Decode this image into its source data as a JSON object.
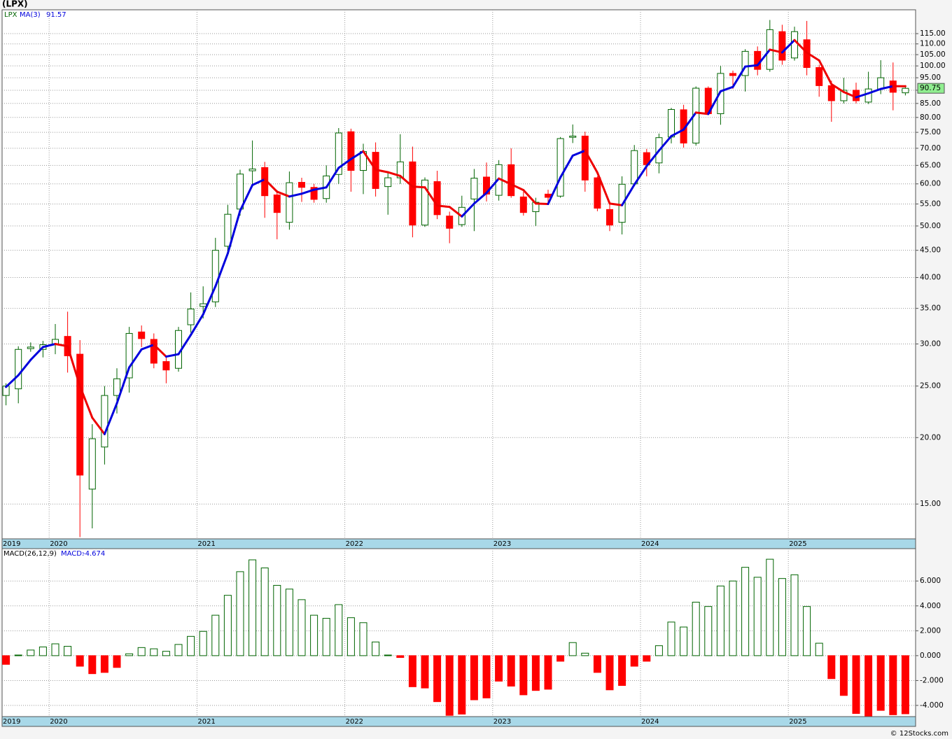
{
  "chart_data": [
    {
      "type": "candlestick",
      "title": "(LPX)",
      "symbol": "LPX",
      "categories": [
        "2019",
        null,
        null,
        null,
        "2020",
        null,
        null,
        null,
        null,
        null,
        null,
        null,
        null,
        null,
        null,
        null,
        "2021",
        null,
        null,
        null,
        null,
        null,
        null,
        null,
        null,
        null,
        null,
        null,
        "2022",
        null,
        null,
        null,
        null,
        null,
        null,
        null,
        null,
        null,
        null,
        null,
        "2023",
        null,
        null,
        null,
        null,
        null,
        null,
        null,
        null,
        null,
        null,
        null,
        "2024",
        null,
        null,
        null,
        null,
        null,
        null,
        null,
        null,
        null,
        null,
        null,
        "2025",
        null,
        null,
        null,
        null,
        null,
        null,
        null,
        null,
        null
      ],
      "open": [
        24.0,
        24.7,
        29.4,
        29.3,
        30.0,
        31.0,
        28.7,
        16.0,
        19.2,
        24.0,
        25.9,
        31.6,
        30.6,
        27.8,
        27.0,
        32.6,
        35.3,
        36.0,
        45.8,
        53.8,
        63.5,
        64.4,
        57.2,
        50.8,
        60.4,
        59.1,
        56.3,
        62.5,
        75.2,
        63.6,
        68.8,
        59.3,
        61.6,
        66.0,
        50.2,
        60.6,
        52.2,
        50.3,
        56.2,
        61.8,
        57.1,
        65.2,
        56.7,
        53.2,
        57.4,
        56.9,
        73.4,
        73.8,
        61.6,
        53.7,
        50.8,
        60.0,
        68.7,
        65.7,
        73.5,
        82.7,
        71.6,
        90.8,
        81.3,
        96.8,
        95.9,
        106.5,
        98.5,
        116.0,
        103.5,
        112.0,
        99.3,
        91.8,
        86.0,
        90.0,
        85.5,
        90.5,
        93.7,
        89.0
      ],
      "high": [
        25.3,
        29.7,
        30.2,
        30.4,
        32.7,
        34.5,
        30.5,
        21.2,
        25.0,
        27.0,
        32.3,
        32.5,
        31.4,
        28.5,
        32.3,
        37.5,
        38.5,
        47.5,
        54.8,
        63.8,
        72.4,
        66.0,
        58.4,
        63.3,
        61.6,
        60.0,
        65.0,
        76.4,
        76.2,
        71.4,
        71.8,
        63.2,
        74.4,
        70.5,
        61.7,
        63.5,
        53.2,
        57.0,
        64.0,
        65.8,
        66.5,
        70.0,
        58.0,
        56.5,
        58.5,
        73.5,
        77.6,
        75.2,
        62.0,
        55.0,
        62.0,
        71.0,
        69.8,
        74.6,
        83.4,
        84.5,
        91.5,
        91.5,
        100.0,
        98.0,
        107.5,
        108.8,
        122.0,
        119.5,
        118.5,
        121.5,
        100.5,
        93.8,
        95.0,
        93.0,
        97.5,
        102.5,
        101.5,
        92.0
      ],
      "low": [
        23.0,
        23.2,
        29.0,
        28.3,
        28.7,
        26.5,
        13.0,
        13.5,
        17.8,
        22.2,
        24.3,
        29.6,
        27.0,
        25.3,
        26.6,
        31.5,
        33.5,
        35.2,
        44.2,
        52.3,
        59.2,
        51.8,
        47.2,
        49.2,
        55.5,
        55.3,
        55.3,
        60.0,
        58.0,
        57.4,
        56.8,
        52.5,
        60.0,
        47.6,
        49.8,
        51.5,
        46.4,
        49.8,
        48.9,
        55.6,
        55.8,
        56.5,
        52.3,
        50.0,
        55.0,
        56.5,
        71.6,
        58.0,
        53.3,
        48.9,
        48.2,
        59.4,
        62.0,
        62.8,
        71.5,
        70.2,
        70.8,
        81.0,
        77.5,
        90.5,
        89.5,
        96.0,
        97.5,
        100.5,
        102.3,
        96.0,
        87.5,
        78.5,
        85.0,
        85.0,
        84.8,
        88.5,
        82.5,
        88.0
      ],
      "close": [
        25.0,
        29.3,
        29.6,
        29.9,
        30.6,
        28.5,
        17.0,
        19.9,
        24.0,
        25.8,
        31.4,
        30.7,
        27.6,
        26.8,
        31.8,
        34.9,
        35.7,
        45.0,
        52.6,
        62.6,
        64.0,
        57.0,
        53.0,
        60.3,
        59.1,
        56.1,
        62.1,
        74.8,
        63.6,
        69.0,
        58.8,
        61.6,
        66.0,
        50.2,
        61.0,
        52.5,
        49.5,
        54.2,
        61.5,
        57.4,
        65.2,
        57.0,
        53.0,
        55.4,
        56.6,
        73.0,
        73.8,
        61.0,
        54.0,
        50.2,
        59.9,
        69.3,
        65.2,
        73.3,
        82.8,
        71.6,
        90.8,
        81.3,
        96.8,
        95.9,
        106.5,
        98.5,
        117.0,
        102.5,
        116.0,
        99.3,
        91.8,
        86.0,
        90.0,
        86.0,
        90.5,
        95.0,
        89.2,
        90.75
      ],
      "up_color": "#006400",
      "down_color": "#ff0000",
      "ma": {
        "name": "MA(3)",
        "up_color": "#0000dd",
        "down_color": "#ee0000",
        "values": [
          24.9,
          26.2,
          28.0,
          29.6,
          30.0,
          29.7,
          25.0,
          21.8,
          20.3,
          23.2,
          27.1,
          29.3,
          29.9,
          28.4,
          28.7,
          31.2,
          34.1,
          38.5,
          44.4,
          53.4,
          59.7,
          61.2,
          58.0,
          56.8,
          57.5,
          58.5,
          59.1,
          64.3,
          66.8,
          69.1,
          63.8,
          63.1,
          62.1,
          59.3,
          59.1,
          54.6,
          54.3,
          52.1,
          55.1,
          57.7,
          61.4,
          59.9,
          58.4,
          55.1,
          55.0,
          61.7,
          67.8,
          69.3,
          63.0,
          55.1,
          54.7,
          59.8,
          64.8,
          69.3,
          73.8,
          75.9,
          81.7,
          81.2,
          89.6,
          91.3,
          99.7,
          100.3,
          107.3,
          106.0,
          111.8,
          105.9,
          102.4,
          92.4,
          89.3,
          87.3,
          88.8,
          90.5,
          91.6,
          91.57
        ]
      },
      "log_scale": true,
      "grid": true,
      "ylim": [
        12.9,
        127.5
      ],
      "yticks": [
        {
          "value": 15,
          "label": "15.00"
        },
        {
          "value": 20,
          "label": "20.00"
        },
        {
          "value": 25,
          "label": "25.00"
        },
        {
          "value": 30,
          "label": "30.00"
        },
        {
          "value": 35,
          "label": "35.00"
        },
        {
          "value": 40,
          "label": "40.00"
        },
        {
          "value": 45,
          "label": "45.00"
        },
        {
          "value": 50,
          "label": "50.00"
        },
        {
          "value": 55,
          "label": "55.00"
        },
        {
          "value": 60,
          "label": "60.00"
        },
        {
          "value": 65,
          "label": "65.00"
        },
        {
          "value": 70,
          "label": "70.00"
        },
        {
          "value": 75,
          "label": "75.00"
        },
        {
          "value": 80,
          "label": "80.00"
        },
        {
          "value": 85,
          "label": "85.00"
        },
        {
          "value": 90,
          "label": "90.00"
        },
        {
          "value": 95,
          "label": "95.00"
        },
        {
          "value": 100,
          "label": "100.00"
        },
        {
          "value": 105,
          "label": "105.00"
        },
        {
          "value": 110,
          "label": "110.00"
        },
        {
          "value": 115,
          "label": "115.00"
        }
      ]
    },
    {
      "type": "bar",
      "title": "MACD(26,12,9)",
      "value_name": "MACD:",
      "values": [
        -0.7,
        0.05,
        0.45,
        0.7,
        0.95,
        0.75,
        -0.85,
        -1.45,
        -1.35,
        -0.95,
        0.15,
        0.65,
        0.55,
        0.35,
        0.9,
        1.55,
        1.95,
        3.25,
        4.85,
        6.75,
        7.7,
        7.05,
        5.65,
        5.35,
        4.5,
        3.25,
        3.0,
        4.1,
        3.05,
        2.65,
        1.1,
        0.05,
        -0.15,
        -2.5,
        -2.6,
        -3.7,
        -4.8,
        -4.7,
        -3.55,
        -3.4,
        -2.05,
        -2.45,
        -3.15,
        -2.8,
        -2.7,
        -0.45,
        1.05,
        0.2,
        -1.35,
        -2.75,
        -2.4,
        -0.85,
        -0.45,
        0.8,
        2.7,
        2.3,
        4.3,
        3.95,
        5.6,
        6.0,
        7.1,
        6.3,
        7.75,
        6.2,
        6.5,
        3.95,
        1.0,
        -1.85,
        -3.2,
        -4.65,
        -4.85,
        -4.4,
        -4.75,
        -4.674
      ],
      "up_color": "#006400",
      "down_color": "#ff0000",
      "grid": true,
      "ylim": [
        -4.9,
        8.6
      ],
      "yticks": [
        {
          "value": -4,
          "label": "-4.000"
        },
        {
          "value": -2,
          "label": "-2.000"
        },
        {
          "value": 0,
          "label": "0.000"
        },
        {
          "value": 2,
          "label": "2.000"
        },
        {
          "value": 4,
          "label": "4.000"
        },
        {
          "value": 6,
          "label": "6.000"
        }
      ]
    }
  ],
  "footer": "© 12Stocks.com"
}
